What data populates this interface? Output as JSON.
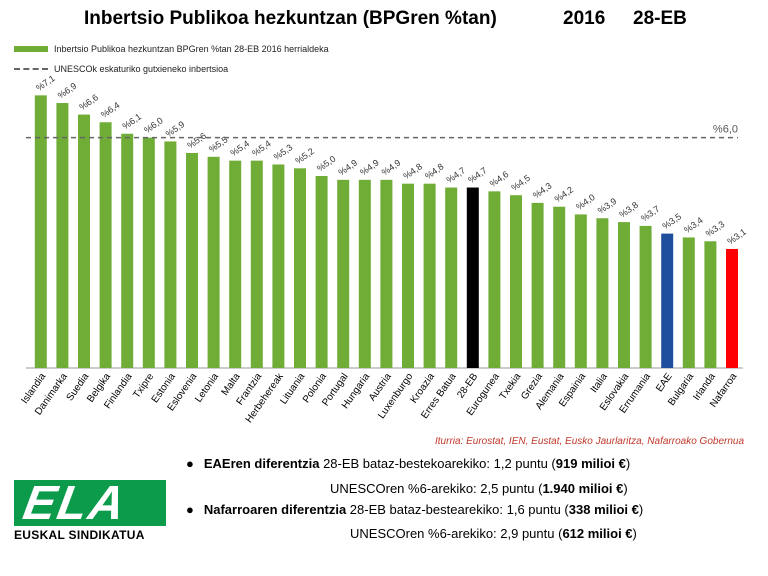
{
  "header": {
    "title": "Inbertsio Publikoa hezkuntzan (BPGren %tan)",
    "year": "2016",
    "period": "28-EB"
  },
  "legend": {
    "bar_label": "Inbertsio Publikoa hezkuntzan BPGren %tan 28-EB 2016 herrialdeka",
    "line_label": "UNESCOk eskaturiko gutxieneko inbertsioa"
  },
  "colors": {
    "default_bar": "#6fad37",
    "eu_average": "#000000",
    "eae": "#1f4e9c",
    "nafarroa": "#ff0000",
    "reference_line": "#666666"
  },
  "chart_data": {
    "type": "bar",
    "categories": [
      "Islandia",
      "Danimarka",
      "Suedia",
      "Belgika",
      "Finlandia",
      "Txipre",
      "Estonia",
      "Eslovenia",
      "Letonia",
      "Malta",
      "Frantzia",
      "Herbehereak",
      "Lituania",
      "Polonia",
      "Portugal",
      "Hungaria",
      "Austria",
      "Luxenburgo",
      "Kroazia",
      "Erres Batua",
      "28-EB",
      "Eurogunea",
      "Txekia",
      "Grezia",
      "Alemania",
      "Espainia",
      "Italia",
      "Eslovakia",
      "Errumania",
      "EAE",
      "Bulgaria",
      "Irlanda",
      "Nafarroa"
    ],
    "values": [
      7.1,
      6.9,
      6.6,
      6.4,
      6.1,
      6.0,
      5.9,
      5.6,
      5.5,
      5.4,
      5.4,
      5.3,
      5.2,
      5.0,
      4.9,
      4.9,
      4.9,
      4.8,
      4.8,
      4.7,
      4.7,
      4.6,
      4.5,
      4.3,
      4.2,
      4.0,
      3.9,
      3.8,
      3.7,
      3.5,
      3.4,
      3.3,
      3.1
    ],
    "data_labels": [
      "%7,1",
      "%6,9",
      "%6,6",
      "%6,4",
      "%6,1",
      "%6,0",
      "%5,9",
      "%5,6",
      "%5,5",
      "%5,4",
      "%5,4",
      "%5,3",
      "%5,2",
      "%5,0",
      "%4,9",
      "%4,9",
      "%4,9",
      "%4,8",
      "%4,8",
      "%4,7",
      "%4,7",
      "%4,6",
      "%4,5",
      "%4,3",
      "%4,2",
      "%4,0",
      "%3,9",
      "%3,8",
      "%3,7",
      "%3,5",
      "%3,4",
      "%3,3",
      "%3,1"
    ],
    "highlight": {
      "28-EB": "eu_average",
      "EAE": "eae",
      "Nafarroa": "nafarroa"
    },
    "reference_line": {
      "value": 6.0,
      "label": "%6,0",
      "style": "dashed"
    },
    "ylim": [
      0,
      7.5
    ],
    "grid": false,
    "legend_position": "top-left"
  },
  "source": "Iturria: Eurostat, IEN, Eustat, Eusko Jaurlaritza, Nafarroako Gobernua",
  "stats": {
    "eae_line1_bold": "EAEren diferentzia",
    "eae_line1_rest": " 28-EB bataz-bestekoarekiko: 1,2 puntu (",
    "eae_line1_amount": "919 milioi €",
    "eae_line2_rest": "UNESCOren %6-arekiko: 2,5 puntu (",
    "eae_line2_amount": "1.940 milioi €",
    "naf_line1_bold": "Nafarroaren diferentzia",
    "naf_line1_rest": " 28-EB bataz-bestearekiko: 1,6 puntu (",
    "naf_line1_amount": "338 milioi €",
    "naf_line2_rest": "UNESCOren %6-arekiko: 2,9 puntu (",
    "naf_line2_amount": "612 milioi €",
    "close_paren": ")"
  },
  "logo": {
    "mark": "ELA",
    "subtitle": "EUSKAL SINDIKATUA"
  }
}
